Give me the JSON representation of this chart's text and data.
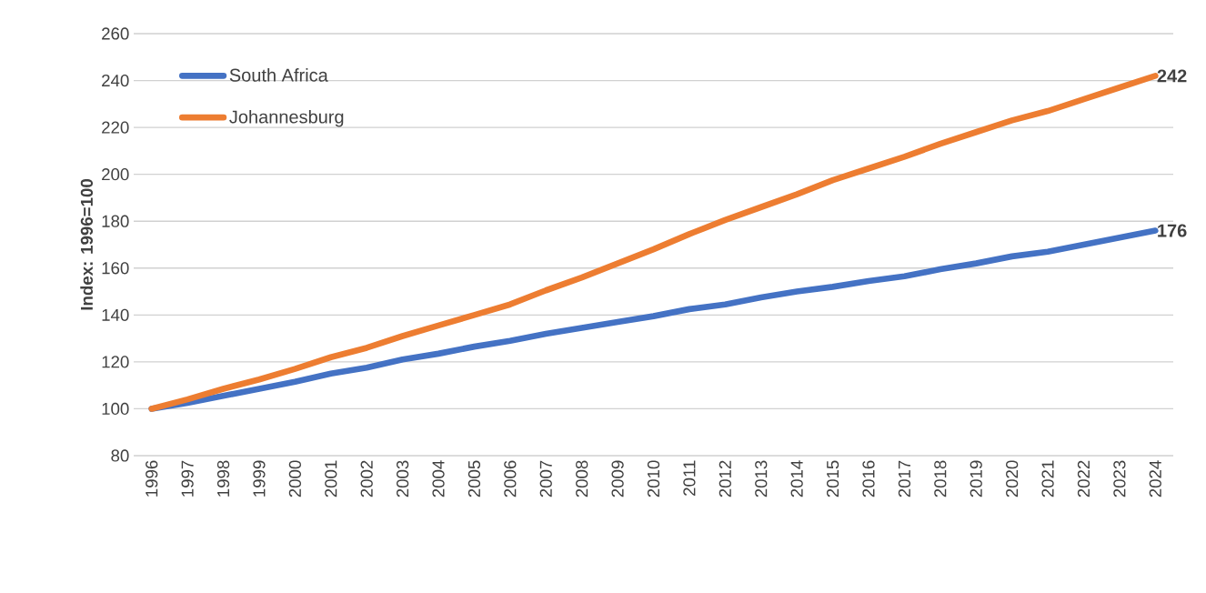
{
  "chart_data": {
    "type": "line",
    "ylabel": "Index: 1996=100",
    "categories": [
      "1996",
      "1997",
      "1998",
      "1999",
      "2000",
      "2001",
      "2002",
      "2003",
      "2004",
      "2005",
      "2006",
      "2007",
      "2008",
      "2009",
      "2010",
      "2011",
      "2012",
      "2013",
      "2014",
      "2015",
      "2016",
      "2017",
      "2018",
      "2019",
      "2020",
      "2021",
      "2022",
      "2023",
      "2024"
    ],
    "series": [
      {
        "name": "South Africa",
        "color": "#4472c4",
        "values": [
          100,
          102.5,
          105.5,
          108.5,
          111.5,
          115,
          117.5,
          121,
          123.5,
          126.5,
          129,
          132,
          134.5,
          137,
          139.5,
          142.5,
          144.5,
          147.5,
          150,
          152,
          154.5,
          156.5,
          159.5,
          162,
          165,
          167,
          170,
          173,
          176
        ],
        "value_labels": [
          null,
          null,
          null,
          null,
          null,
          null,
          null,
          null,
          null,
          null,
          null,
          null,
          null,
          null,
          null,
          null,
          null,
          null,
          null,
          null,
          null,
          null,
          null,
          null,
          null,
          null,
          null,
          null,
          "176"
        ]
      },
      {
        "name": "Johannesburg",
        "color": "#ed7d31",
        "values": [
          100,
          104,
          108.5,
          112.5,
          117,
          122,
          126,
          131,
          135.5,
          140,
          144.5,
          150.5,
          156,
          162,
          168,
          174.5,
          180.5,
          186,
          191.5,
          197.5,
          202.5,
          207.5,
          213,
          218,
          223,
          227,
          232,
          237,
          242
        ],
        "value_labels": [
          null,
          null,
          null,
          null,
          null,
          null,
          null,
          null,
          null,
          null,
          null,
          null,
          null,
          null,
          null,
          null,
          null,
          null,
          null,
          null,
          null,
          null,
          null,
          null,
          null,
          null,
          null,
          null,
          "242"
        ]
      }
    ],
    "ylim": [
      80,
      260
    ],
    "yticks": [
      80,
      100,
      120,
      140,
      160,
      180,
      200,
      220,
      240,
      260
    ],
    "grid": "y",
    "legend": "top left",
    "marker": "none",
    "line_style": "solid"
  }
}
